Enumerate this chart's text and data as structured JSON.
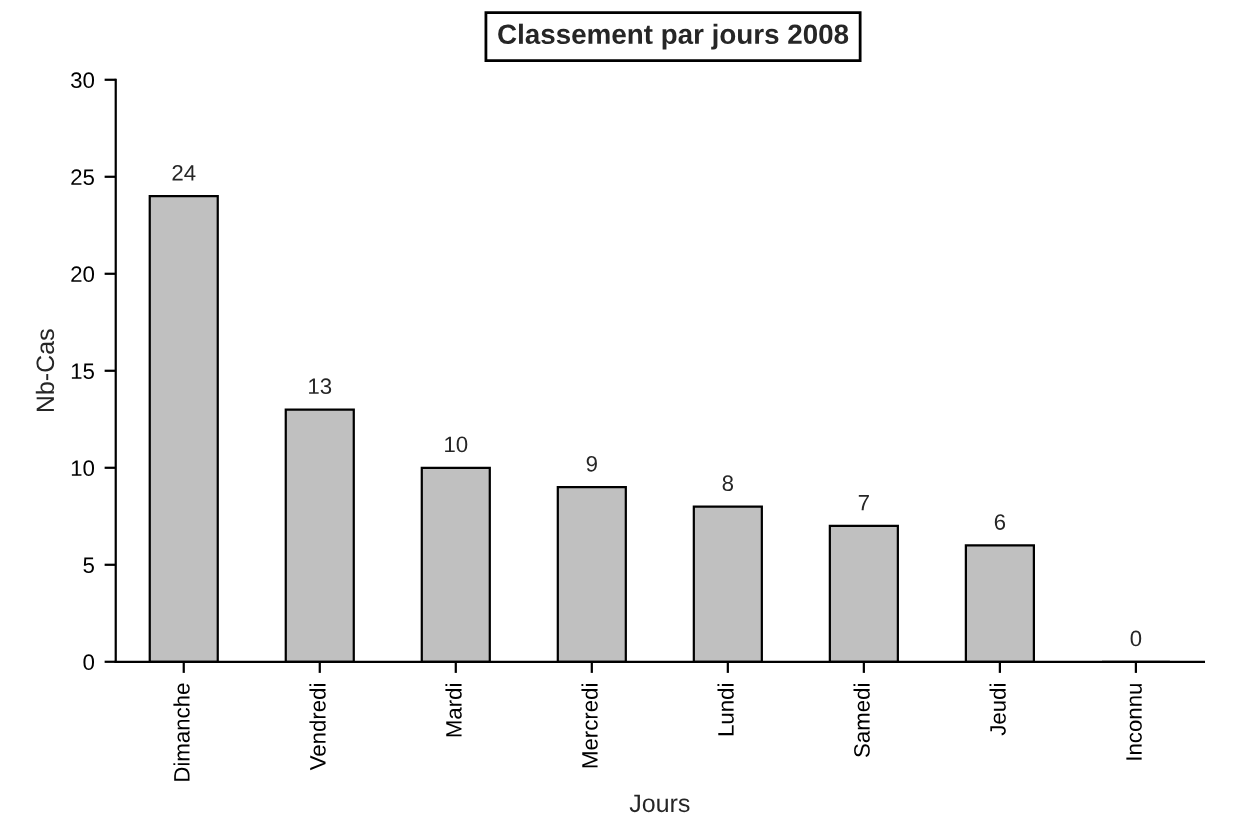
{
  "chart_data": {
    "type": "bar",
    "title": "Classement par jours 2008",
    "xlabel": "Jours",
    "ylabel": "Nb-Cas",
    "categories": [
      "Dimanche",
      "Vendredi",
      "Mardi",
      "Mercredi",
      "Lundi",
      "Samedi",
      "Jeudi",
      "Inconnu"
    ],
    "values": [
      24,
      13,
      10,
      9,
      8,
      7,
      6,
      0
    ],
    "color": "#c0c0c0",
    "ylim": [
      0,
      30
    ],
    "yticks": [
      0,
      5,
      10,
      15,
      20,
      25,
      30
    ],
    "grid": false,
    "data_labels": true
  }
}
